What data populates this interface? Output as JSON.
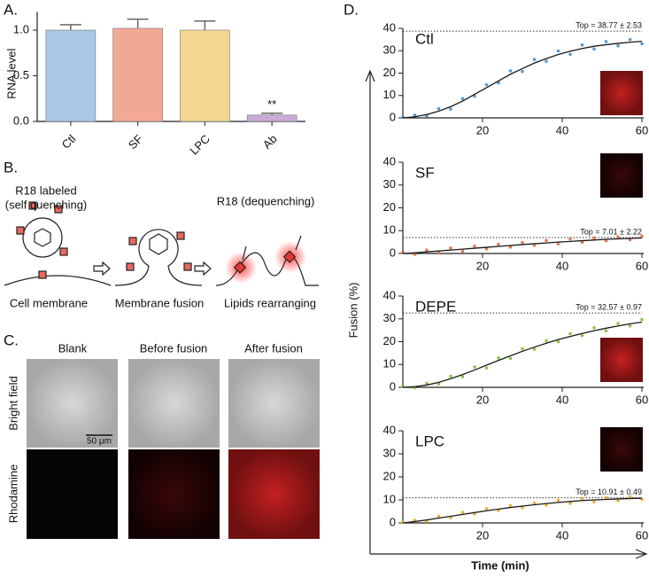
{
  "panels": [
    "A.",
    "B.",
    "C.",
    "D."
  ],
  "chart_data": [
    {
      "type": "bar",
      "ylabel": "RNA level",
      "categories": [
        "Ctl",
        "SF",
        "LPC",
        "Ab"
      ],
      "values": [
        1.0,
        1.02,
        1.0,
        0.07
      ],
      "errors": [
        0.06,
        0.1,
        0.1,
        0.02
      ],
      "colors": [
        "#a9c8e6",
        "#f2a994",
        "#f5d690",
        "#c9aad8"
      ],
      "significance": [
        null,
        null,
        null,
        "**"
      ],
      "ylim": [
        0,
        1.2
      ],
      "yticks": [
        {
          "value": 0,
          "label": "0.0"
        },
        {
          "value": 0.5,
          "label": "0.5"
        },
        {
          "value": 1,
          "label": "1.0"
        }
      ]
    },
    {
      "type": "scatter",
      "title": "Ctl",
      "x": [
        0,
        3,
        6,
        9,
        12,
        15,
        18,
        21,
        24,
        27,
        30,
        33,
        36,
        39,
        42,
        45,
        48,
        51,
        54,
        57,
        60
      ],
      "series": [
        {
          "color": "#3a86c8",
          "values": [
            0.3,
            1.2,
            0.8,
            4.1,
            3.9,
            8.6,
            9.7,
            14.8,
            15.6,
            21.0,
            20.7,
            26.1,
            25.3,
            29.9,
            28.4,
            32.6,
            30.8,
            34.1,
            32.2,
            35.0,
            33.1
          ]
        },
        {
          "color": "#1a1a1a",
          "fit": true,
          "values": [
            0,
            0.5,
            1.5,
            3,
            5,
            7.5,
            10.5,
            13.5,
            16.5,
            19.5,
            22,
            24.5,
            26.5,
            28.3,
            29.8,
            31,
            32,
            32.7,
            33.3,
            33.8,
            34.2
          ]
        }
      ],
      "top": 38.77,
      "top_label": "Top = 38.77 ± 2.53",
      "xlim": [
        0,
        60
      ],
      "ylim": [
        0,
        40
      ],
      "xticks": [
        20,
        40,
        60
      ],
      "yticks": [
        0,
        10,
        20,
        30,
        40
      ]
    },
    {
      "type": "scatter",
      "title": "SF",
      "x": [
        0,
        3,
        6,
        9,
        12,
        15,
        18,
        21,
        24,
        27,
        30,
        33,
        36,
        39,
        42,
        45,
        48,
        51,
        54,
        57,
        60
      ],
      "series": [
        {
          "color": "#e0623a",
          "values": [
            0.5,
            -0.4,
            1.5,
            0.3,
            2.4,
            1.0,
            3.2,
            2.0,
            4.0,
            2.8,
            4.8,
            3.6,
            5.7,
            4.2,
            6.4,
            4.9,
            6.8,
            5.6,
            7.3,
            6.0,
            7.5
          ]
        },
        {
          "color": "#1a1a1a",
          "fit": true,
          "values": [
            0,
            0.3,
            0.7,
            1.1,
            1.5,
            1.9,
            2.3,
            2.7,
            3.1,
            3.5,
            3.9,
            4.3,
            4.6,
            5,
            5.3,
            5.6,
            5.9,
            6.2,
            6.4,
            6.6,
            6.8
          ]
        }
      ],
      "top": 7.01,
      "top_label": "Top = 7.01 ± 2.22",
      "xlim": [
        0,
        60
      ],
      "ylim": [
        0,
        40
      ],
      "xticks": [
        20,
        40,
        60
      ],
      "yticks": [
        0,
        10,
        20,
        30,
        40
      ]
    },
    {
      "type": "scatter",
      "title": "DEPE",
      "x": [
        0,
        3,
        6,
        9,
        12,
        15,
        18,
        21,
        24,
        27,
        30,
        33,
        36,
        39,
        42,
        45,
        48,
        51,
        54,
        57,
        60
      ],
      "series": [
        {
          "color": "#7ab829",
          "values": [
            0.4,
            -0.2,
            1.8,
            1.5,
            4.9,
            4.6,
            8.9,
            8.5,
            12.9,
            12.6,
            16.9,
            16.7,
            20.4,
            20.0,
            23.5,
            22.7,
            26.1,
            24.8,
            28.0,
            26.9,
            29.7
          ]
        },
        {
          "color": "#1a1a1a",
          "fit": true,
          "values": [
            0,
            0.3,
            1,
            2.2,
            3.8,
            5.6,
            7.6,
            9.7,
            11.8,
            13.8,
            15.8,
            17.6,
            19.3,
            20.9,
            22.3,
            23.6,
            24.8,
            25.9,
            26.9,
            27.8,
            28.6
          ]
        }
      ],
      "top": 32.57,
      "top_label": "Top = 32.57 ± 0.97",
      "xlim": [
        0,
        60
      ],
      "ylim": [
        0,
        40
      ],
      "xticks": [
        20,
        40,
        60
      ],
      "yticks": [
        0,
        10,
        20,
        30,
        40
      ]
    },
    {
      "type": "scatter",
      "title": "LPC",
      "x": [
        0,
        3,
        6,
        9,
        12,
        15,
        18,
        21,
        24,
        27,
        30,
        33,
        36,
        39,
        42,
        45,
        48,
        51,
        54,
        57,
        60
      ],
      "series": [
        {
          "color": "#e6a817",
          "values": [
            0.3,
            1.2,
            0.7,
            2.9,
            2.2,
            4.6,
            3.8,
            6.2,
            5.4,
            7.6,
            6.6,
            8.7,
            7.7,
            9.8,
            8.5,
            10.6,
            9.2,
            11.0,
            9.7,
            11.4,
            10.2
          ]
        },
        {
          "color": "#1a1a1a",
          "fit": true,
          "values": [
            0,
            0.6,
            1.3,
            2.1,
            2.9,
            3.7,
            4.5,
            5.3,
            6,
            6.7,
            7.3,
            7.9,
            8.4,
            8.9,
            9.3,
            9.7,
            10,
            10.2,
            10.4,
            10.6,
            10.7
          ]
        }
      ],
      "top": 10.91,
      "top_label": "Top = 10.91 ± 0.49",
      "xlim": [
        0,
        60
      ],
      "ylim": [
        0,
        40
      ],
      "xticks": [
        20,
        40,
        60
      ],
      "yticks": [
        0,
        10,
        20,
        30,
        40
      ]
    }
  ],
  "shared_axes": {
    "ylabel": "Fusion (%)",
    "xlabel": "Time (min)"
  },
  "diagram": {
    "labeled": "R18 labeled",
    "quenching": "(self quenching)",
    "dequenching": "R18 (dequenching)",
    "steps": [
      "Cell membrane",
      "Membrane fusion",
      "Lipids rearranging"
    ]
  },
  "images": {
    "columns": [
      "Blank",
      "Before fusion",
      "After fusion"
    ],
    "rows": [
      "Bright field",
      "Rhodamine"
    ],
    "scale_bar": "50 μm"
  }
}
